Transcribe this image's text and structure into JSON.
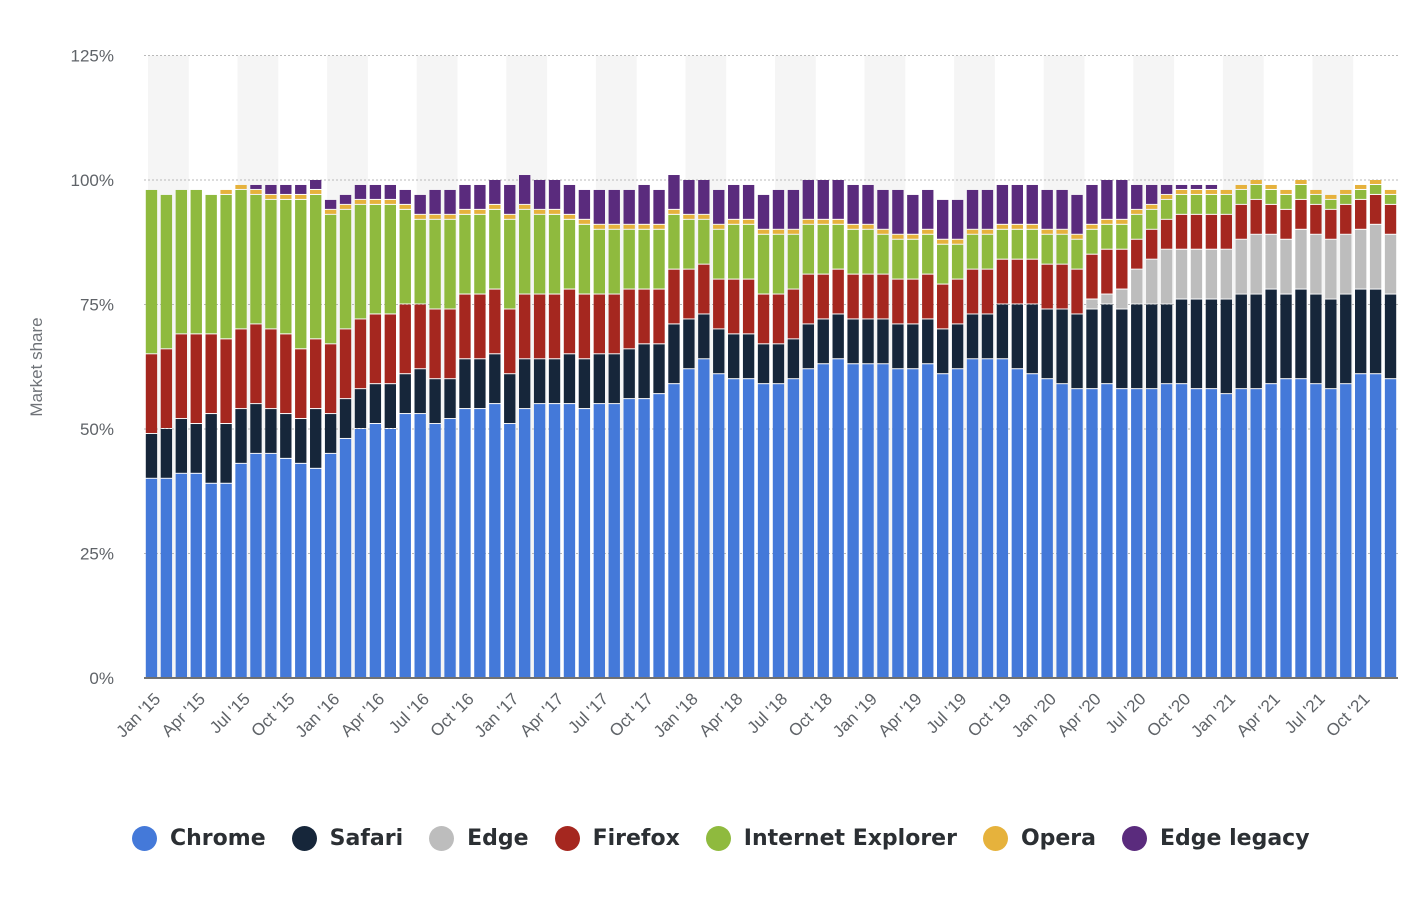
{
  "chart_data": {
    "type": "bar",
    "stacked": true,
    "title": "",
    "xlabel": "",
    "ylabel": "Market share",
    "ylim": [
      0,
      125
    ],
    "y_ticks": [
      "0%",
      "25%",
      "50%",
      "75%",
      "100%",
      "125%"
    ],
    "y_tick_values": [
      0,
      25,
      50,
      75,
      100,
      125
    ],
    "categories": [
      "Jan '15",
      "Feb '15",
      "Mar '15",
      "Apr '15",
      "May '15",
      "Jun '15",
      "Jul '15",
      "Aug '15",
      "Sep '15",
      "Oct '15",
      "Nov '15",
      "Dec '15",
      "Jan '16",
      "Feb '16",
      "Mar '16",
      "Apr '16",
      "May '16",
      "Jun '16",
      "Jul '16",
      "Aug '16",
      "Sep '16",
      "Oct '16",
      "Nov '16",
      "Dec '16",
      "Jan '17",
      "Feb '17",
      "Mar '17",
      "Apr '17",
      "May '17",
      "Jun '17",
      "Jul '17",
      "Aug '17",
      "Sep '17",
      "Oct '17",
      "Nov '17",
      "Dec '17",
      "Jan '18",
      "Feb '18",
      "Mar '18",
      "Apr '18",
      "May '18",
      "Jun '18",
      "Jul '18",
      "Aug '18",
      "Sep '18",
      "Oct '18",
      "Nov '18",
      "Dec '18",
      "Jan '19",
      "Feb '19",
      "Mar '19",
      "Apr '19",
      "May '19",
      "Jun '19",
      "Jul '19",
      "Aug '19",
      "Sep '19",
      "Oct '19",
      "Nov '19",
      "Dec '19",
      "Jan '20",
      "Feb '20",
      "Mar '20",
      "Apr '20",
      "May '20",
      "Jun '20",
      "Jul '20",
      "Aug '20",
      "Sep '20",
      "Oct '20",
      "Nov '20",
      "Dec '20",
      "Jan '21",
      "Feb '21",
      "Mar '21",
      "Apr '21",
      "May '21",
      "Jun '21",
      "Jul '21",
      "Aug '21",
      "Sep '21",
      "Oct '21",
      "Nov '21",
      "Dec '21"
    ],
    "x_tick_labels": [
      "Jan '15",
      "Apr '15",
      "Jul '15",
      "Oct '15",
      "Jan '16",
      "Apr '16",
      "Jul '16",
      "Oct '16",
      "Jan '17",
      "Apr '17",
      "Jul '17",
      "Oct '17",
      "Jan '18",
      "Apr '18",
      "Jul '18",
      "Oct '18",
      "Jan '19",
      "Apr '19",
      "Jul '19",
      "Oct '19",
      "Jan '20",
      "Apr '20",
      "Jul '20",
      "Oct '20",
      "Jan '21",
      "Apr '21",
      "Jul '21",
      "Oct '21"
    ],
    "series": [
      {
        "name": "Chrome",
        "color": "#4479d9",
        "values": [
          40,
          40,
          41,
          41,
          39,
          39,
          43,
          45,
          45,
          44,
          43,
          42,
          45,
          48,
          50,
          51,
          50,
          53,
          53,
          51,
          52,
          54,
          54,
          55,
          51,
          54,
          55,
          55,
          55,
          54,
          55,
          55,
          56,
          56,
          57,
          59,
          62,
          64,
          61,
          60,
          60,
          59,
          59,
          60,
          62,
          63,
          64,
          63,
          63,
          63,
          62,
          62,
          63,
          61,
          62,
          64,
          64,
          64,
          62,
          61,
          60,
          59,
          58,
          58,
          59,
          58,
          58,
          58,
          59,
          59,
          58,
          58,
          57,
          58,
          58,
          59,
          60,
          60,
          59,
          58,
          59,
          61,
          61,
          60
        ]
      },
      {
        "name": "Safari",
        "color": "#16263a",
        "values": [
          9,
          10,
          11,
          10,
          14,
          12,
          11,
          10,
          9,
          9,
          9,
          12,
          8,
          8,
          8,
          8,
          9,
          8,
          9,
          9,
          8,
          10,
          10,
          10,
          10,
          10,
          9,
          9,
          10,
          10,
          10,
          10,
          10,
          11,
          10,
          12,
          10,
          9,
          9,
          9,
          9,
          8,
          8,
          8,
          9,
          9,
          9,
          9,
          9,
          9,
          9,
          9,
          9,
          9,
          9,
          9,
          9,
          11,
          13,
          14,
          14,
          15,
          15,
          16,
          16,
          16,
          17,
          17,
          16,
          17,
          18,
          18,
          19,
          19,
          19,
          19,
          17,
          18,
          18,
          18,
          18,
          17,
          17,
          17
        ]
      },
      {
        "name": "Edge",
        "color": "#bdbdbd",
        "values": [
          0,
          0,
          0,
          0,
          0,
          0,
          0,
          0,
          0,
          0,
          0,
          0,
          0,
          0,
          0,
          0,
          0,
          0,
          0,
          0,
          0,
          0,
          0,
          0,
          0,
          0,
          0,
          0,
          0,
          0,
          0,
          0,
          0,
          0,
          0,
          0,
          0,
          0,
          0,
          0,
          0,
          0,
          0,
          0,
          0,
          0,
          0,
          0,
          0,
          0,
          0,
          0,
          0,
          0,
          0,
          0,
          0,
          0,
          0,
          0,
          0,
          0,
          0,
          2,
          2,
          4,
          7,
          9,
          11,
          10,
          10,
          10,
          10,
          11,
          12,
          11,
          11,
          12,
          12,
          12,
          12,
          12,
          13,
          12
        ]
      },
      {
        "name": "Firefox",
        "color": "#a5271f",
        "values": [
          16,
          16,
          17,
          18,
          16,
          17,
          16,
          16,
          16,
          16,
          14,
          14,
          14,
          14,
          14,
          14,
          14,
          14,
          13,
          14,
          14,
          13,
          13,
          13,
          13,
          13,
          13,
          13,
          13,
          13,
          12,
          12,
          12,
          11,
          11,
          11,
          10,
          10,
          10,
          11,
          11,
          10,
          10,
          10,
          10,
          9,
          9,
          9,
          9,
          9,
          9,
          9,
          9,
          9,
          9,
          9,
          9,
          9,
          9,
          9,
          9,
          9,
          9,
          9,
          9,
          8,
          6,
          6,
          6,
          7,
          7,
          7,
          7,
          7,
          7,
          6,
          6,
          6,
          6,
          6,
          6,
          6,
          6,
          6
        ]
      },
      {
        "name": "Internet Explorer",
        "color": "#8fba3e",
        "values": [
          33,
          31,
          29,
          29,
          28,
          29,
          28,
          26,
          26,
          27,
          30,
          29,
          26,
          24,
          23,
          22,
          22,
          19,
          17,
          18,
          18,
          16,
          16,
          16,
          18,
          17,
          16,
          16,
          14,
          14,
          13,
          13,
          12,
          12,
          12,
          11,
          10,
          9,
          10,
          11,
          11,
          12,
          12,
          11,
          10,
          10,
          9,
          9,
          9,
          8,
          8,
          8,
          8,
          8,
          7,
          7,
          7,
          6,
          6,
          6,
          6,
          6,
          6,
          5,
          5,
          5,
          5,
          4,
          4,
          4,
          4,
          4,
          4,
          3,
          3,
          3,
          3,
          3,
          2,
          2,
          2,
          2,
          2,
          2
        ]
      },
      {
        "name": "Opera",
        "color": "#e6b23c",
        "values": [
          0,
          0,
          0,
          0,
          0,
          1,
          1,
          1,
          1,
          1,
          1,
          1,
          1,
          1,
          1,
          1,
          1,
          1,
          1,
          1,
          1,
          1,
          1,
          1,
          1,
          1,
          1,
          1,
          1,
          1,
          1,
          1,
          1,
          1,
          1,
          1,
          1,
          1,
          1,
          1,
          1,
          1,
          1,
          1,
          1,
          1,
          1,
          1,
          1,
          1,
          1,
          1,
          1,
          1,
          1,
          1,
          1,
          1,
          1,
          1,
          1,
          1,
          1,
          1,
          1,
          1,
          1,
          1,
          1,
          1,
          1,
          1,
          1,
          1,
          1,
          1,
          1,
          1,
          1,
          1,
          1,
          1,
          1,
          1
        ]
      },
      {
        "name": "Edge legacy",
        "color": "#5a2b7d",
        "values": [
          0,
          0,
          0,
          0,
          0,
          0,
          0,
          1,
          2,
          2,
          2,
          2,
          2,
          2,
          3,
          3,
          3,
          3,
          4,
          5,
          5,
          5,
          5,
          5,
          6,
          6,
          6,
          6,
          6,
          6,
          7,
          7,
          7,
          8,
          7,
          7,
          7,
          7,
          7,
          7,
          7,
          7,
          8,
          8,
          8,
          8,
          8,
          8,
          8,
          8,
          9,
          8,
          8,
          8,
          8,
          8,
          8,
          8,
          8,
          8,
          8,
          8,
          8,
          8,
          8,
          8,
          5,
          4,
          2,
          1,
          1,
          1,
          0,
          0,
          0,
          0,
          0,
          0,
          0,
          0,
          0,
          0,
          0,
          0
        ]
      }
    ],
    "legend_position": "bottom"
  }
}
